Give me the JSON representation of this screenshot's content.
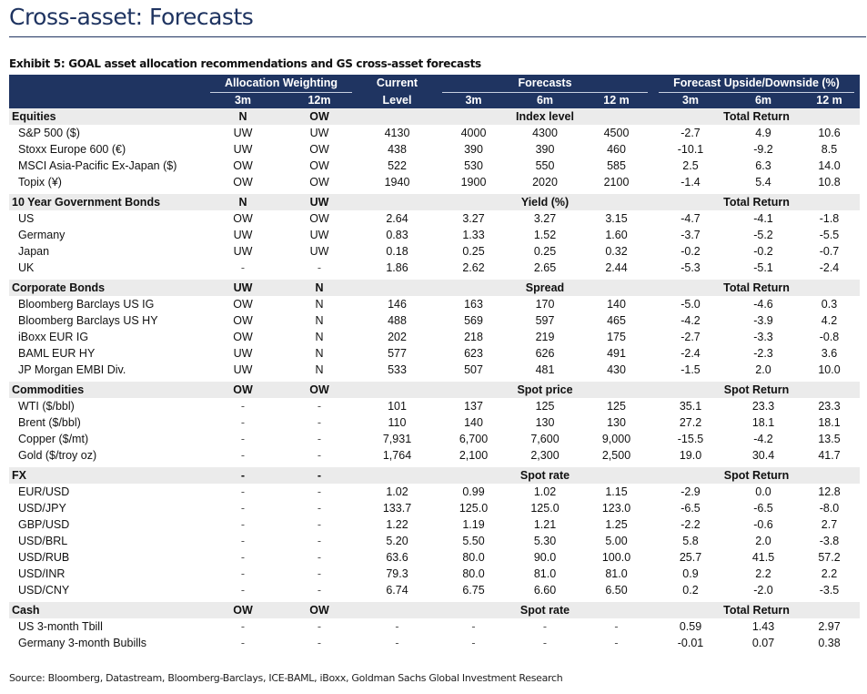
{
  "page_title": "Cross-asset: Forecasts",
  "exhibit_title": "Exhibit 5: GOAL asset allocation recommendations and GS cross-asset forecasts",
  "header": {
    "allocation_weighting": "Allocation Weighting",
    "current": "Current",
    "level": "Level",
    "forecasts": "Forecasts",
    "upside_downside": "Forecast Upside/Downside (%)",
    "sub": [
      "3m",
      "12m",
      "3m",
      "6m",
      "12 m",
      "3m",
      "6m",
      "12 m"
    ]
  },
  "sections": [
    {
      "name": "Equities",
      "w3m": "N",
      "w12m": "OW",
      "forecast_label": "Index level",
      "return_label": "Total Return",
      "rows": [
        [
          "S&P 500 ($)",
          "UW",
          "UW",
          "4130",
          "4000",
          "4300",
          "4500",
          "-2.7",
          "4.9",
          "10.6"
        ],
        [
          "Stoxx Europe 600 (€)",
          "UW",
          "OW",
          "438",
          "390",
          "390",
          "460",
          "-10.1",
          "-9.2",
          "8.5"
        ],
        [
          "MSCI Asia-Pacific Ex-Japan ($)",
          "OW",
          "OW",
          "522",
          "530",
          "550",
          "585",
          "2.5",
          "6.3",
          "14.0"
        ],
        [
          "Topix (¥)",
          "OW",
          "OW",
          "1940",
          "1900",
          "2020",
          "2100",
          "-1.4",
          "5.4",
          "10.8"
        ]
      ]
    },
    {
      "name": "10 Year Government Bonds",
      "w3m": "N",
      "w12m": "UW",
      "forecast_label": "Yield (%)",
      "return_label": "Total Return",
      "rows": [
        [
          "US",
          "OW",
          "OW",
          "2.64",
          "3.27",
          "3.27",
          "3.15",
          "-4.7",
          "-4.1",
          "-1.8"
        ],
        [
          "Germany",
          "UW",
          "UW",
          "0.83",
          "1.33",
          "1.52",
          "1.60",
          "-3.7",
          "-5.2",
          "-5.5"
        ],
        [
          "Japan",
          "UW",
          "UW",
          "0.18",
          "0.25",
          "0.25",
          "0.32",
          "-0.2",
          "-0.2",
          "-0.7"
        ],
        [
          "UK",
          "-",
          "-",
          "1.86",
          "2.62",
          "2.65",
          "2.44",
          "-5.3",
          "-5.1",
          "-2.4"
        ]
      ]
    },
    {
      "name": "Corporate Bonds",
      "w3m": "UW",
      "w12m": "N",
      "forecast_label": "Spread",
      "return_label": "Total Return",
      "rows": [
        [
          "Bloomberg Barclays US IG",
          "OW",
          "N",
          "146",
          "163",
          "170",
          "140",
          "-5.0",
          "-4.6",
          "0.3"
        ],
        [
          "Bloomberg Barclays US HY",
          "OW",
          "N",
          "488",
          "569",
          "597",
          "465",
          "-4.2",
          "-3.9",
          "4.2"
        ],
        [
          "iBoxx EUR IG",
          "OW",
          "N",
          "202",
          "218",
          "219",
          "175",
          "-2.7",
          "-3.3",
          "-0.8"
        ],
        [
          "BAML EUR HY",
          "UW",
          "N",
          "577",
          "623",
          "626",
          "491",
          "-2.4",
          "-2.3",
          "3.6"
        ],
        [
          "JP Morgan EMBI Div.",
          "UW",
          "N",
          "533",
          "507",
          "481",
          "430",
          "-1.5",
          "2.0",
          "10.0"
        ]
      ]
    },
    {
      "name": "Commodities",
      "w3m": "OW",
      "w12m": "OW",
      "forecast_label": "Spot price",
      "return_label": "Spot Return",
      "rows": [
        [
          "WTI  ($/bbl)",
          "-",
          "-",
          "101",
          "137",
          "125",
          "125",
          "35.1",
          "23.3",
          "23.3"
        ],
        [
          "Brent ($/bbl)",
          "-",
          "-",
          "110",
          "140",
          "130",
          "130",
          "27.2",
          "18.1",
          "18.1"
        ],
        [
          "Copper ($/mt)",
          "-",
          "-",
          "7,931",
          "6,700",
          "7,600",
          "9,000",
          "-15.5",
          "-4.2",
          "13.5"
        ],
        [
          "Gold ($/troy oz)",
          "-",
          "-",
          "1,764",
          "2,100",
          "2,300",
          "2,500",
          "19.0",
          "30.4",
          "41.7"
        ]
      ]
    },
    {
      "name": "FX",
      "w3m": "-",
      "w12m": "-",
      "forecast_label": "Spot rate",
      "return_label": "Spot Return",
      "rows": [
        [
          "EUR/USD",
          "-",
          "-",
          "1.02",
          "0.99",
          "1.02",
          "1.15",
          "-2.9",
          "0.0",
          "12.8"
        ],
        [
          "USD/JPY",
          "-",
          "-",
          "133.7",
          "125.0",
          "125.0",
          "123.0",
          "-6.5",
          "-6.5",
          "-8.0"
        ],
        [
          "GBP/USD",
          "-",
          "-",
          "1.22",
          "1.19",
          "1.21",
          "1.25",
          "-2.2",
          "-0.6",
          "2.7"
        ],
        [
          "USD/BRL",
          "-",
          "-",
          "5.20",
          "5.50",
          "5.30",
          "5.00",
          "5.8",
          "2.0",
          "-3.8"
        ],
        [
          "USD/RUB",
          "-",
          "-",
          "63.6",
          "80.0",
          "90.0",
          "100.0",
          "25.7",
          "41.5",
          "57.2"
        ],
        [
          "USD/INR",
          "-",
          "-",
          "79.3",
          "80.0",
          "81.0",
          "81.0",
          "0.9",
          "2.2",
          "2.2"
        ],
        [
          "USD/CNY",
          "-",
          "-",
          "6.74",
          "6.75",
          "6.60",
          "6.50",
          "0.2",
          "-2.0",
          "-3.5"
        ]
      ]
    },
    {
      "name": "Cash",
      "w3m": "OW",
      "w12m": "OW",
      "forecast_label": "Spot rate",
      "return_label": "Total Return",
      "rows": [
        [
          "US 3-month Tbill",
          "-",
          "-",
          "-",
          "-",
          "-",
          "-",
          "0.59",
          "1.43",
          "2.97"
        ],
        [
          "Germany 3-month Bubills",
          "-",
          "-",
          "-",
          "-",
          "-",
          "-",
          "-0.01",
          "0.07",
          "0.38"
        ]
      ]
    }
  ],
  "source": "Source: Bloomberg, Datastream, Bloomberg-Barclays, ICE-BAML, iBoxx, Goldman Sachs Global Investment Research"
}
